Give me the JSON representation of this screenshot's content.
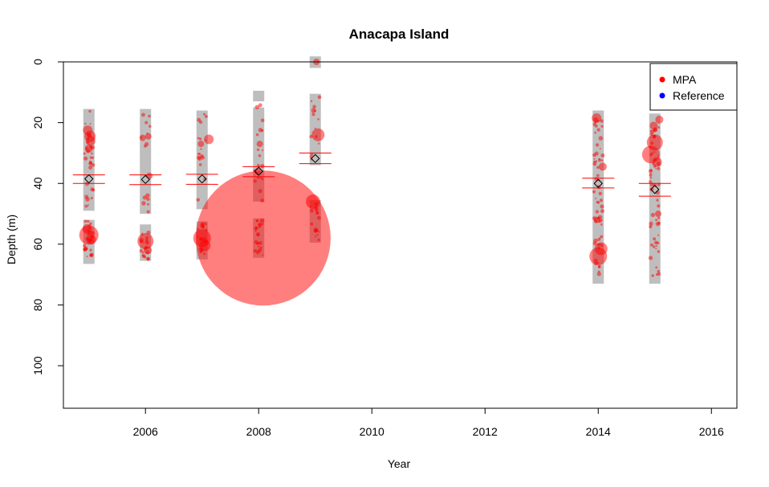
{
  "chart_data": {
    "type": "scatter",
    "title": "Anacapa Island",
    "xlabel": "Year",
    "ylabel": "Depth (m)",
    "xlim": [
      2004.55,
      2016.45
    ],
    "ylim": [
      0,
      114
    ],
    "y_reversed": true,
    "x_ticks": [
      2006,
      2008,
      2010,
      2012,
      2014,
      2016
    ],
    "y_ticks": [
      0,
      20,
      40,
      60,
      80,
      100
    ],
    "grid": false,
    "legend": {
      "position": "top-right",
      "entries": [
        {
          "label": "MPA",
          "color": "#ff0000"
        },
        {
          "label": "Reference",
          "color": "#0000ff"
        }
      ]
    },
    "colors": {
      "mpa": "#ff0000",
      "depth_range": "#bebebe",
      "mean_marker": "#000000"
    },
    "depth_ranges": [
      {
        "year": 2005,
        "segments": [
          [
            15.5,
            49
          ],
          [
            52,
            66.5
          ]
        ]
      },
      {
        "year": 2006,
        "segments": [
          [
            15.5,
            50
          ],
          [
            53.5,
            65.5
          ]
        ]
      },
      {
        "year": 2007,
        "segments": [
          [
            16,
            48.5
          ],
          [
            52.5,
            65
          ]
        ]
      },
      {
        "year": 2008,
        "segments": [
          [
            9.5,
            13
          ],
          [
            15,
            46
          ],
          [
            51.5,
            64.5
          ]
        ]
      },
      {
        "year": 2009,
        "segments": [
          [
            -1.8,
            2
          ],
          [
            10.5,
            34
          ],
          [
            45.5,
            59.5
          ]
        ]
      },
      {
        "year": 2014,
        "segments": [
          [
            16,
            73
          ]
        ]
      },
      {
        "year": 2015,
        "segments": [
          [
            17,
            73
          ]
        ]
      }
    ],
    "mean_depth": [
      {
        "year": 2005,
        "mean": 38.5,
        "ci_low": 37.2,
        "ci_high": 40.0
      },
      {
        "year": 2006,
        "mean": 38.7,
        "ci_low": 37.2,
        "ci_high": 40.4
      },
      {
        "year": 2007,
        "mean": 38.5,
        "ci_low": 37.0,
        "ci_high": 40.3
      },
      {
        "year": 2008,
        "mean": 36.0,
        "ci_low": 34.5,
        "ci_high": 37.8
      },
      {
        "year": 2009,
        "mean": 31.8,
        "ci_low": 30.0,
        "ci_high": 33.5
      },
      {
        "year": 2014,
        "mean": 40.0,
        "ci_low": 38.3,
        "ci_high": 41.5
      },
      {
        "year": 2015,
        "mean": 42.0,
        "ci_low": 40.0,
        "ci_high": 44.2
      }
    ],
    "large_points": [
      {
        "x": 2005.0,
        "y": 57.0,
        "size": 12
      },
      {
        "x": 2005.02,
        "y": 24.5,
        "size": 7
      },
      {
        "x": 2004.98,
        "y": 22.5,
        "size": 6
      },
      {
        "x": 2005.03,
        "y": 26.0,
        "size": 6
      },
      {
        "x": 2005.0,
        "y": 28.5,
        "size": 5
      },
      {
        "x": 2004.97,
        "y": 55.0,
        "size": 6
      },
      {
        "x": 2005.04,
        "y": 58.5,
        "size": 6
      },
      {
        "x": 2006.0,
        "y": 59.0,
        "size": 10
      },
      {
        "x": 2005.95,
        "y": 25.0,
        "size": 4
      },
      {
        "x": 2006.05,
        "y": 24.5,
        "size": 4
      },
      {
        "x": 2006.07,
        "y": 37.5,
        "size": 4
      },
      {
        "x": 2006.04,
        "y": 62.0,
        "size": 5
      },
      {
        "x": 2007.0,
        "y": 58.0,
        "size": 11
      },
      {
        "x": 2007.05,
        "y": 60.5,
        "size": 7
      },
      {
        "x": 2007.12,
        "y": 25.5,
        "size": 6
      },
      {
        "x": 2006.98,
        "y": 27.0,
        "size": 4
      },
      {
        "x": 2008.08,
        "y": 58.0,
        "size": 84
      },
      {
        "x": 2008.02,
        "y": 27.0,
        "size": 4
      },
      {
        "x": 2007.98,
        "y": 36.0,
        "size": 4
      },
      {
        "x": 2009.05,
        "y": 24.0,
        "size": 8
      },
      {
        "x": 2008.96,
        "y": 46.0,
        "size": 9
      },
      {
        "x": 2009.02,
        "y": 0.0,
        "size": 4
      },
      {
        "x": 2008.97,
        "y": 16.0,
        "size": 3
      },
      {
        "x": 2014.0,
        "y": 64.0,
        "size": 11
      },
      {
        "x": 2014.05,
        "y": 61.5,
        "size": 8
      },
      {
        "x": 2013.97,
        "y": 18.5,
        "size": 6
      },
      {
        "x": 2013.98,
        "y": 52.0,
        "size": 4
      },
      {
        "x": 2014.08,
        "y": 34.5,
        "size": 5
      },
      {
        "x": 2015.0,
        "y": 26.5,
        "size": 10
      },
      {
        "x": 2014.93,
        "y": 30.5,
        "size": 11
      },
      {
        "x": 2014.98,
        "y": 21.0,
        "size": 5
      },
      {
        "x": 2015.04,
        "y": 33.0,
        "size": 6
      },
      {
        "x": 2015.08,
        "y": 19.0,
        "size": 5
      },
      {
        "x": 2015.06,
        "y": 50.0,
        "size": 4
      }
    ],
    "small_point_clusters": [
      {
        "year": 2005,
        "ranges": [
          [
            16,
            49
          ],
          [
            52,
            66
          ]
        ],
        "count": 55
      },
      {
        "year": 2006,
        "ranges": [
          [
            16,
            50
          ],
          [
            54,
            65
          ]
        ],
        "count": 35
      },
      {
        "year": 2007,
        "ranges": [
          [
            17,
            48
          ],
          [
            53,
            64
          ]
        ],
        "count": 35
      },
      {
        "year": 2008,
        "ranges": [
          [
            10,
            46
          ],
          [
            52,
            64
          ]
        ],
        "count": 40
      },
      {
        "year": 2009,
        "ranges": [
          [
            11,
            34
          ],
          [
            46,
            59
          ]
        ],
        "count": 30
      },
      {
        "year": 2014,
        "ranges": [
          [
            17,
            72
          ]
        ],
        "count": 60
      },
      {
        "year": 2015,
        "ranges": [
          [
            18,
            72
          ]
        ],
        "count": 55
      }
    ]
  }
}
